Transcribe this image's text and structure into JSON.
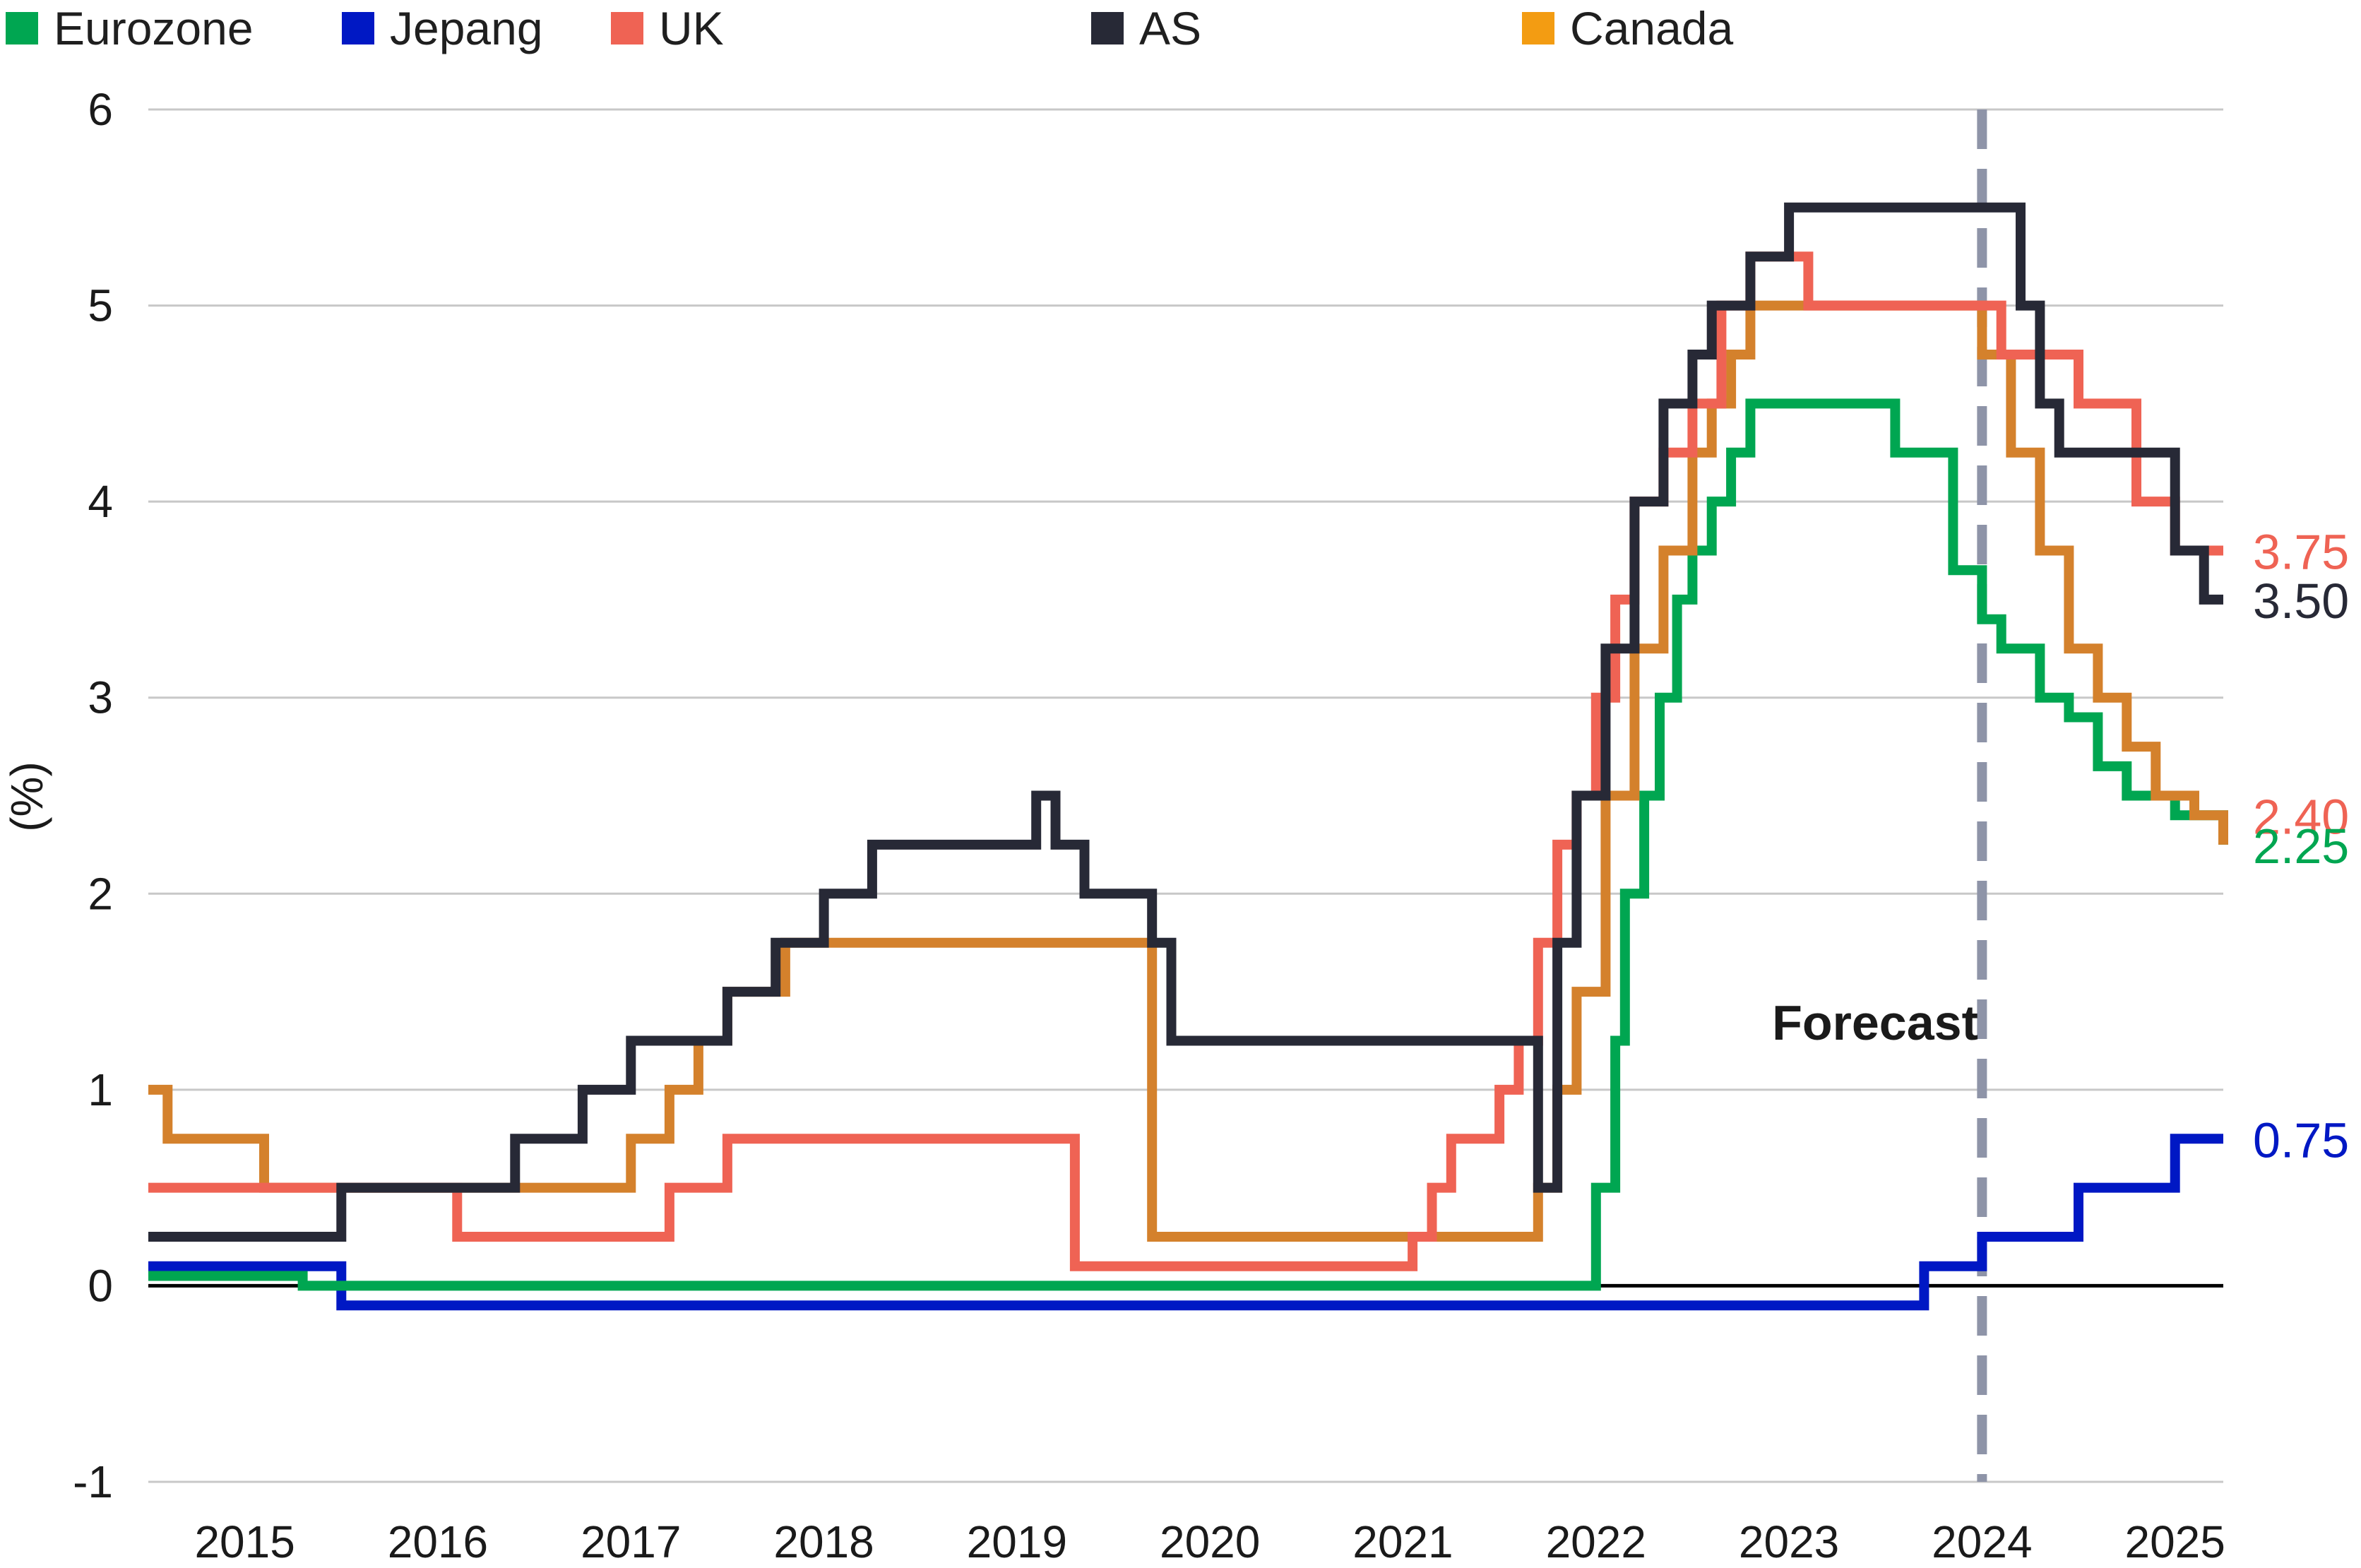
{
  "chart_data": {
    "type": "line",
    "title": "",
    "xlabel": "",
    "ylabel": "(%)",
    "xlim": [
      2015,
      2025.75
    ],
    "ylim": [
      -1,
      6
    ],
    "y_ticks": [
      "-1",
      "0",
      "1",
      "2",
      "3",
      "4",
      "5",
      "6"
    ],
    "x_ticks": [
      "2015",
      "2016",
      "2017",
      "2018",
      "2019",
      "2020",
      "2021",
      "2022",
      "2023",
      "2024",
      "2025"
    ],
    "grid": true,
    "step": true,
    "legend_position": "top",
    "forecast_start": 2024.5,
    "annotation": "Forecast",
    "series": [
      {
        "name": "Eurozone",
        "color": "#00a651",
        "x": [
          2015.0,
          2015.8,
          2022.5,
          2022.6,
          2022.65,
          2022.75,
          2022.83,
          2022.92,
          2023.0,
          2023.1,
          2023.2,
          2023.3,
          2023.4,
          2023.5,
          2024.05,
          2024.35,
          2024.5,
          2024.6,
          2024.8,
          2024.95,
          2025.1,
          2025.25,
          2025.5,
          2025.75
        ],
        "y": [
          0.05,
          0.0,
          0.5,
          1.25,
          2.0,
          2.5,
          3.0,
          3.5,
          3.75,
          4.0,
          4.25,
          4.5,
          4.5,
          4.5,
          4.25,
          3.65,
          3.4,
          3.25,
          3.0,
          2.9,
          2.65,
          2.5,
          2.4,
          2.25
        ]
      },
      {
        "name": "Jepang",
        "color": "#0018c4",
        "x": [
          2015.0,
          2016.0,
          2024.2,
          2024.5,
          2025.0,
          2025.5,
          2025.75
        ],
        "y": [
          0.1,
          -0.1,
          0.1,
          0.25,
          0.5,
          0.75,
          0.75
        ]
      },
      {
        "name": "UK",
        "color": "#ef6354",
        "x": [
          2015.0,
          2016.6,
          2017.7,
          2018.0,
          2019.8,
          2021.55,
          2021.65,
          2021.75,
          2022.0,
          2022.1,
          2022.2,
          2022.3,
          2022.4,
          2022.5,
          2022.6,
          2022.7,
          2022.85,
          2023.0,
          2023.15,
          2023.3,
          2023.4,
          2023.5,
          2023.6,
          2024.6,
          2025.0,
          2025.3,
          2025.5,
          2025.75
        ],
        "y": [
          0.5,
          0.25,
          0.5,
          0.75,
          0.1,
          0.25,
          0.5,
          0.75,
          1.0,
          1.25,
          1.75,
          2.25,
          2.5,
          3.0,
          3.5,
          4.0,
          4.25,
          4.5,
          5.0,
          5.25,
          5.25,
          5.25,
          5.0,
          4.75,
          4.5,
          4.0,
          3.75,
          3.75
        ]
      },
      {
        "name": "AS",
        "color": "#272936",
        "x": [
          2015.0,
          2016.0,
          2016.9,
          2017.25,
          2017.5,
          2018.0,
          2018.25,
          2018.5,
          2018.75,
          2019.6,
          2019.7,
          2019.85,
          2020.2,
          2020.3,
          2022.2,
          2022.3,
          2022.4,
          2022.55,
          2022.7,
          2022.85,
          2023.0,
          2023.1,
          2023.3,
          2023.5,
          2024.7,
          2024.8,
          2024.9,
          2025.5,
          2025.65
        ],
        "y": [
          0.25,
          0.5,
          0.75,
          1.0,
          1.25,
          1.5,
          1.75,
          2.0,
          2.25,
          2.5,
          2.25,
          2.0,
          1.75,
          1.25,
          0.5,
          1.75,
          2.5,
          3.25,
          4.0,
          4.5,
          4.75,
          5.0,
          5.25,
          5.5,
          5.0,
          4.5,
          4.25,
          3.75,
          3.5
        ]
      },
      {
        "name": "Canada",
        "color": "#d4812c",
        "x": [
          2015.0,
          2015.1,
          2015.6,
          2017.5,
          2017.7,
          2017.85,
          2018.0,
          2018.3,
          2018.6,
          2018.9,
          2019.9,
          2020.2,
          2020.3,
          2022.2,
          2022.3,
          2022.4,
          2022.55,
          2022.7,
          2022.85,
          2023.0,
          2023.1,
          2023.2,
          2023.3,
          2024.5,
          2024.65,
          2024.8,
          2024.95,
          2025.1,
          2025.25,
          2025.4,
          2025.6,
          2025.75
        ],
        "y": [
          1.0,
          0.75,
          0.5,
          0.75,
          1.0,
          1.25,
          1.5,
          1.75,
          1.75,
          1.75,
          1.75,
          0.25,
          0.25,
          0.5,
          1.0,
          1.5,
          2.5,
          3.25,
          3.75,
          4.25,
          4.5,
          4.75,
          5.0,
          4.75,
          4.25,
          3.75,
          3.25,
          3.0,
          2.75,
          2.5,
          2.4,
          2.25
        ]
      }
    ],
    "end_labels": [
      {
        "text": "3.75",
        "color": "#ef6354",
        "y": 3.75
      },
      {
        "text": "3.50",
        "color": "#272936",
        "y": 3.5
      },
      {
        "text": "2.40",
        "color": "#ef6354",
        "y": 2.4
      },
      {
        "text": "2.25",
        "color": "#00a651",
        "y": 2.25
      },
      {
        "text": "0.75",
        "color": "#0018c4",
        "y": 0.75
      }
    ]
  },
  "legend": [
    {
      "label": "Eurozone",
      "color": "#00a651"
    },
    {
      "label": "Jepang",
      "color": "#0018c4"
    },
    {
      "label": "UK",
      "color": "#ef6354"
    },
    {
      "label": "AS",
      "color": "#272936"
    },
    {
      "label": "Canada",
      "color": "#f39c12"
    }
  ]
}
